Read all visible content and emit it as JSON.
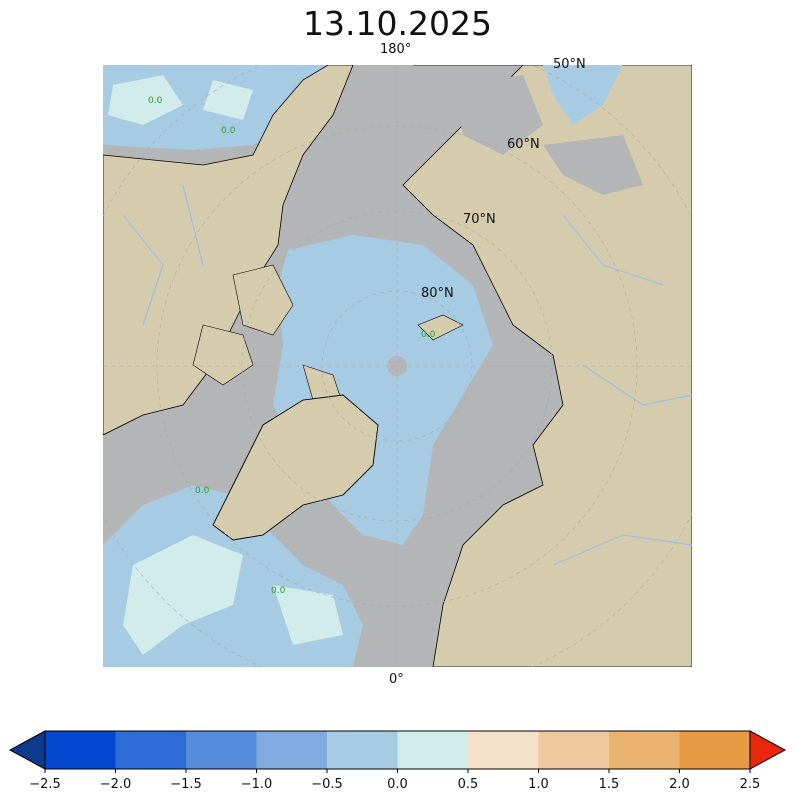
{
  "title": "13.10.2025",
  "map": {
    "projection": "north polar stereographic",
    "meridian_labels": {
      "top": "180°",
      "bottom": "0°"
    },
    "parallel_labels": [
      "50°N",
      "60°N",
      "70°N",
      "80°N"
    ],
    "contour_label": "0.0",
    "colors": {
      "land": "#d5ccad",
      "sea_ice": "#b3b5b7",
      "ocean_blue": "#a7cbe3",
      "ocean_cyan": "#d2ebeb",
      "rivers": "#9bbfe6",
      "contour": "#2ca02c"
    }
  },
  "colorbar": {
    "ticks": [
      "−2.5",
      "−2.0",
      "−1.5",
      "−1.0",
      "−0.5",
      "0.0",
      "0.5",
      "1.0",
      "1.5",
      "2.0",
      "2.5"
    ],
    "colors": [
      "#0346cf",
      "#2d6bd6",
      "#578cda",
      "#7fabdf",
      "#a7cbe3",
      "#d2ebeb",
      "#f5e1c9",
      "#f0c89d",
      "#eab36f",
      "#e59a43"
    ],
    "under_color": "#0c3a8c",
    "over_color": "#ea260c"
  }
}
